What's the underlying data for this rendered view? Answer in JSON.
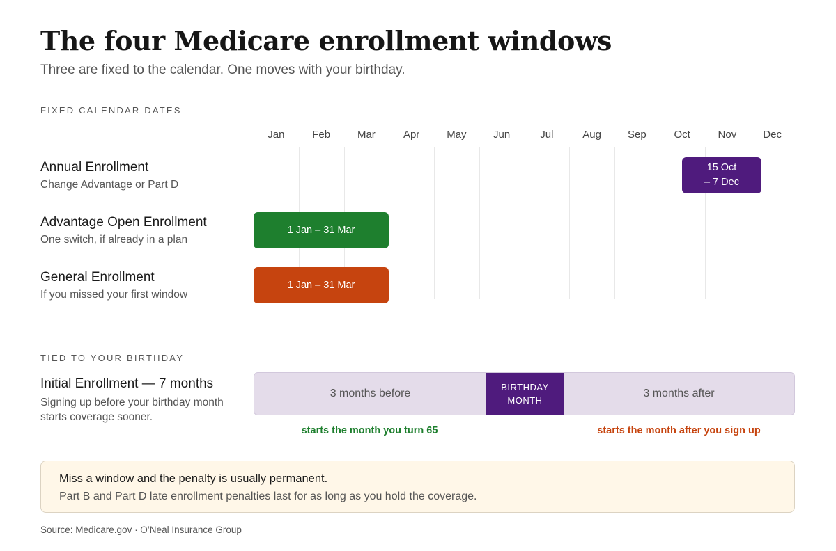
{
  "header": {
    "title": "The four Medicare enrollment windows",
    "subtitle": "Three are fixed to the calendar. One moves with your birthday."
  },
  "sections": {
    "fixed_label": "FIXED CALENDAR DATES",
    "birthday_label": "TIED TO YOUR BIRTHDAY"
  },
  "months": [
    "Jan",
    "Feb",
    "Mar",
    "Apr",
    "May",
    "Jun",
    "Jul",
    "Aug",
    "Sep",
    "Oct",
    "Nov",
    "Dec"
  ],
  "rows": [
    {
      "title": "Annual Enrollment",
      "subtitle": "Change Advantage or Part D",
      "bar_label": "15 Oct\n– 7 Dec",
      "start": "15 Oct",
      "end": "7 Dec",
      "color": "#4f1b7d"
    },
    {
      "title": "Advantage Open Enrollment",
      "subtitle": "One switch, if already in a plan",
      "bar_label": "1 Jan – 31 Mar",
      "start": "1 Jan",
      "end": "31 Mar",
      "color": "#1e7f2e"
    },
    {
      "title": "General Enrollment",
      "subtitle": "If you missed your first window",
      "bar_label": "1 Jan – 31 Mar",
      "start": "1 Jan",
      "end": "31 Mar",
      "color": "#c6440f"
    }
  ],
  "initial_enrollment": {
    "title": "Initial Enrollment — 7 months",
    "subtitle": "Signing up before your birthday month starts coverage sooner.",
    "segments": {
      "before": "3 months before",
      "birthday": "BIRTHDAY\nMONTH",
      "after": "3 months after"
    },
    "note_before": "starts the month you turn 65",
    "note_after": "starts the month after you sign up",
    "colors": {
      "track": "#e4dcea",
      "birthday": "#4f1b7d",
      "note_before": "#1e7f2e",
      "note_after": "#c6440f"
    }
  },
  "callout": {
    "title": "Miss a window and the penalty is usually permanent.",
    "body": "Part B and Part D late enrollment penalties last for as long as you hold the coverage."
  },
  "source": "Source: Medicare.gov · O’Neal Insurance Group"
}
